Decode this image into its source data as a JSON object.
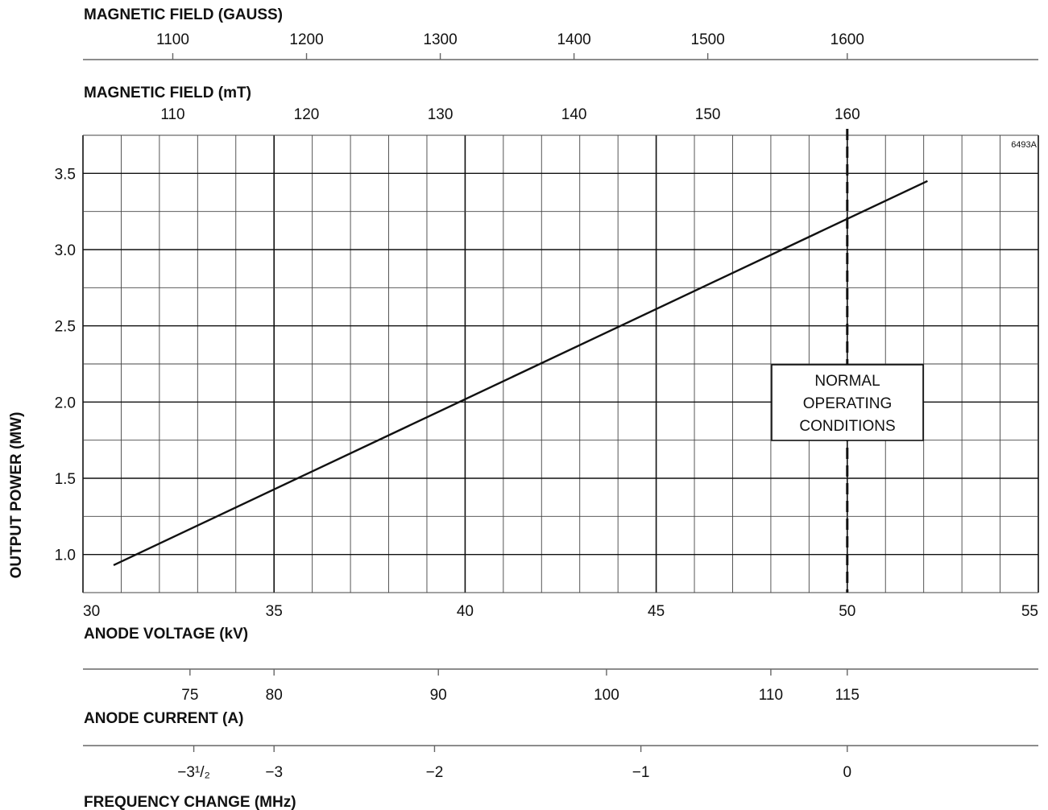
{
  "colors": {
    "line": "#111111",
    "grid_minor": "#444444",
    "grid_major": "#111111",
    "axis": "#666666",
    "background": "#ffffff"
  },
  "chart_data": {
    "type": "line",
    "figure_code": "6493A",
    "grid": true,
    "x": [
      30.8,
      52.1
    ],
    "series": [
      {
        "values": [
          0.93,
          3.45
        ]
      }
    ],
    "xlabel": "ANODE VOLTAGE (kV)",
    "ylabel": "OUTPUT POWER (MW)",
    "xlim": [
      30,
      55
    ],
    "ylim": [
      0.75,
      3.75
    ],
    "x_ticks": [
      30,
      35,
      40,
      45,
      50,
      55
    ],
    "y_ticks": [
      1.0,
      1.5,
      2.0,
      2.5,
      3.0,
      3.5
    ],
    "x_tick_labels": [
      "30",
      "35",
      "40",
      "45",
      "50",
      "55"
    ],
    "y_tick_labels": [
      "1.0",
      "1.5",
      "2.0",
      "2.5",
      "3.0",
      "3.5"
    ],
    "normal_operating": {
      "x": 50,
      "label_lines": [
        "NORMAL",
        "OPERATING",
        "CONDITIONS"
      ]
    },
    "secondary_axes": [
      {
        "position": "top",
        "label": "MAGNETIC FIELD (GAUSS)",
        "ticks": [
          {
            "label": "1100",
            "at_anode_kv": 32.35
          },
          {
            "label": "1200",
            "at_anode_kv": 35.85
          },
          {
            "label": "1300",
            "at_anode_kv": 39.35
          },
          {
            "label": "1400",
            "at_anode_kv": 42.85
          },
          {
            "label": "1500",
            "at_anode_kv": 46.35
          },
          {
            "label": "1600",
            "at_anode_kv": 50.0
          }
        ]
      },
      {
        "position": "top",
        "label": "MAGNETIC FIELD (mT)",
        "ticks": [
          {
            "label": "110",
            "at_anode_kv": 32.35
          },
          {
            "label": "120",
            "at_anode_kv": 35.85
          },
          {
            "label": "130",
            "at_anode_kv": 39.35
          },
          {
            "label": "140",
            "at_anode_kv": 42.85
          },
          {
            "label": "150",
            "at_anode_kv": 46.35
          },
          {
            "label": "160",
            "at_anode_kv": 50.0
          }
        ]
      },
      {
        "position": "bottom",
        "label": "ANODE CURRENT (A)",
        "ticks": [
          {
            "label": "75",
            "at_anode_kv": 32.8
          },
          {
            "label": "80",
            "at_anode_kv": 35.0
          },
          {
            "label": "90",
            "at_anode_kv": 39.3
          },
          {
            "label": "100",
            "at_anode_kv": 43.7
          },
          {
            "label": "110",
            "at_anode_kv": 48.0
          },
          {
            "label": "115",
            "at_anode_kv": 50.0
          }
        ]
      },
      {
        "position": "bottom",
        "label": "FREQUENCY CHANGE (MHz)",
        "ticks": [
          {
            "label": "−3¹/₂",
            "at_anode_kv": 32.9
          },
          {
            "label": "−3",
            "at_anode_kv": 35.0
          },
          {
            "label": "−2",
            "at_anode_kv": 39.2
          },
          {
            "label": "−1",
            "at_anode_kv": 44.6
          },
          {
            "label": "0",
            "at_anode_kv": 50.0
          }
        ]
      }
    ]
  }
}
